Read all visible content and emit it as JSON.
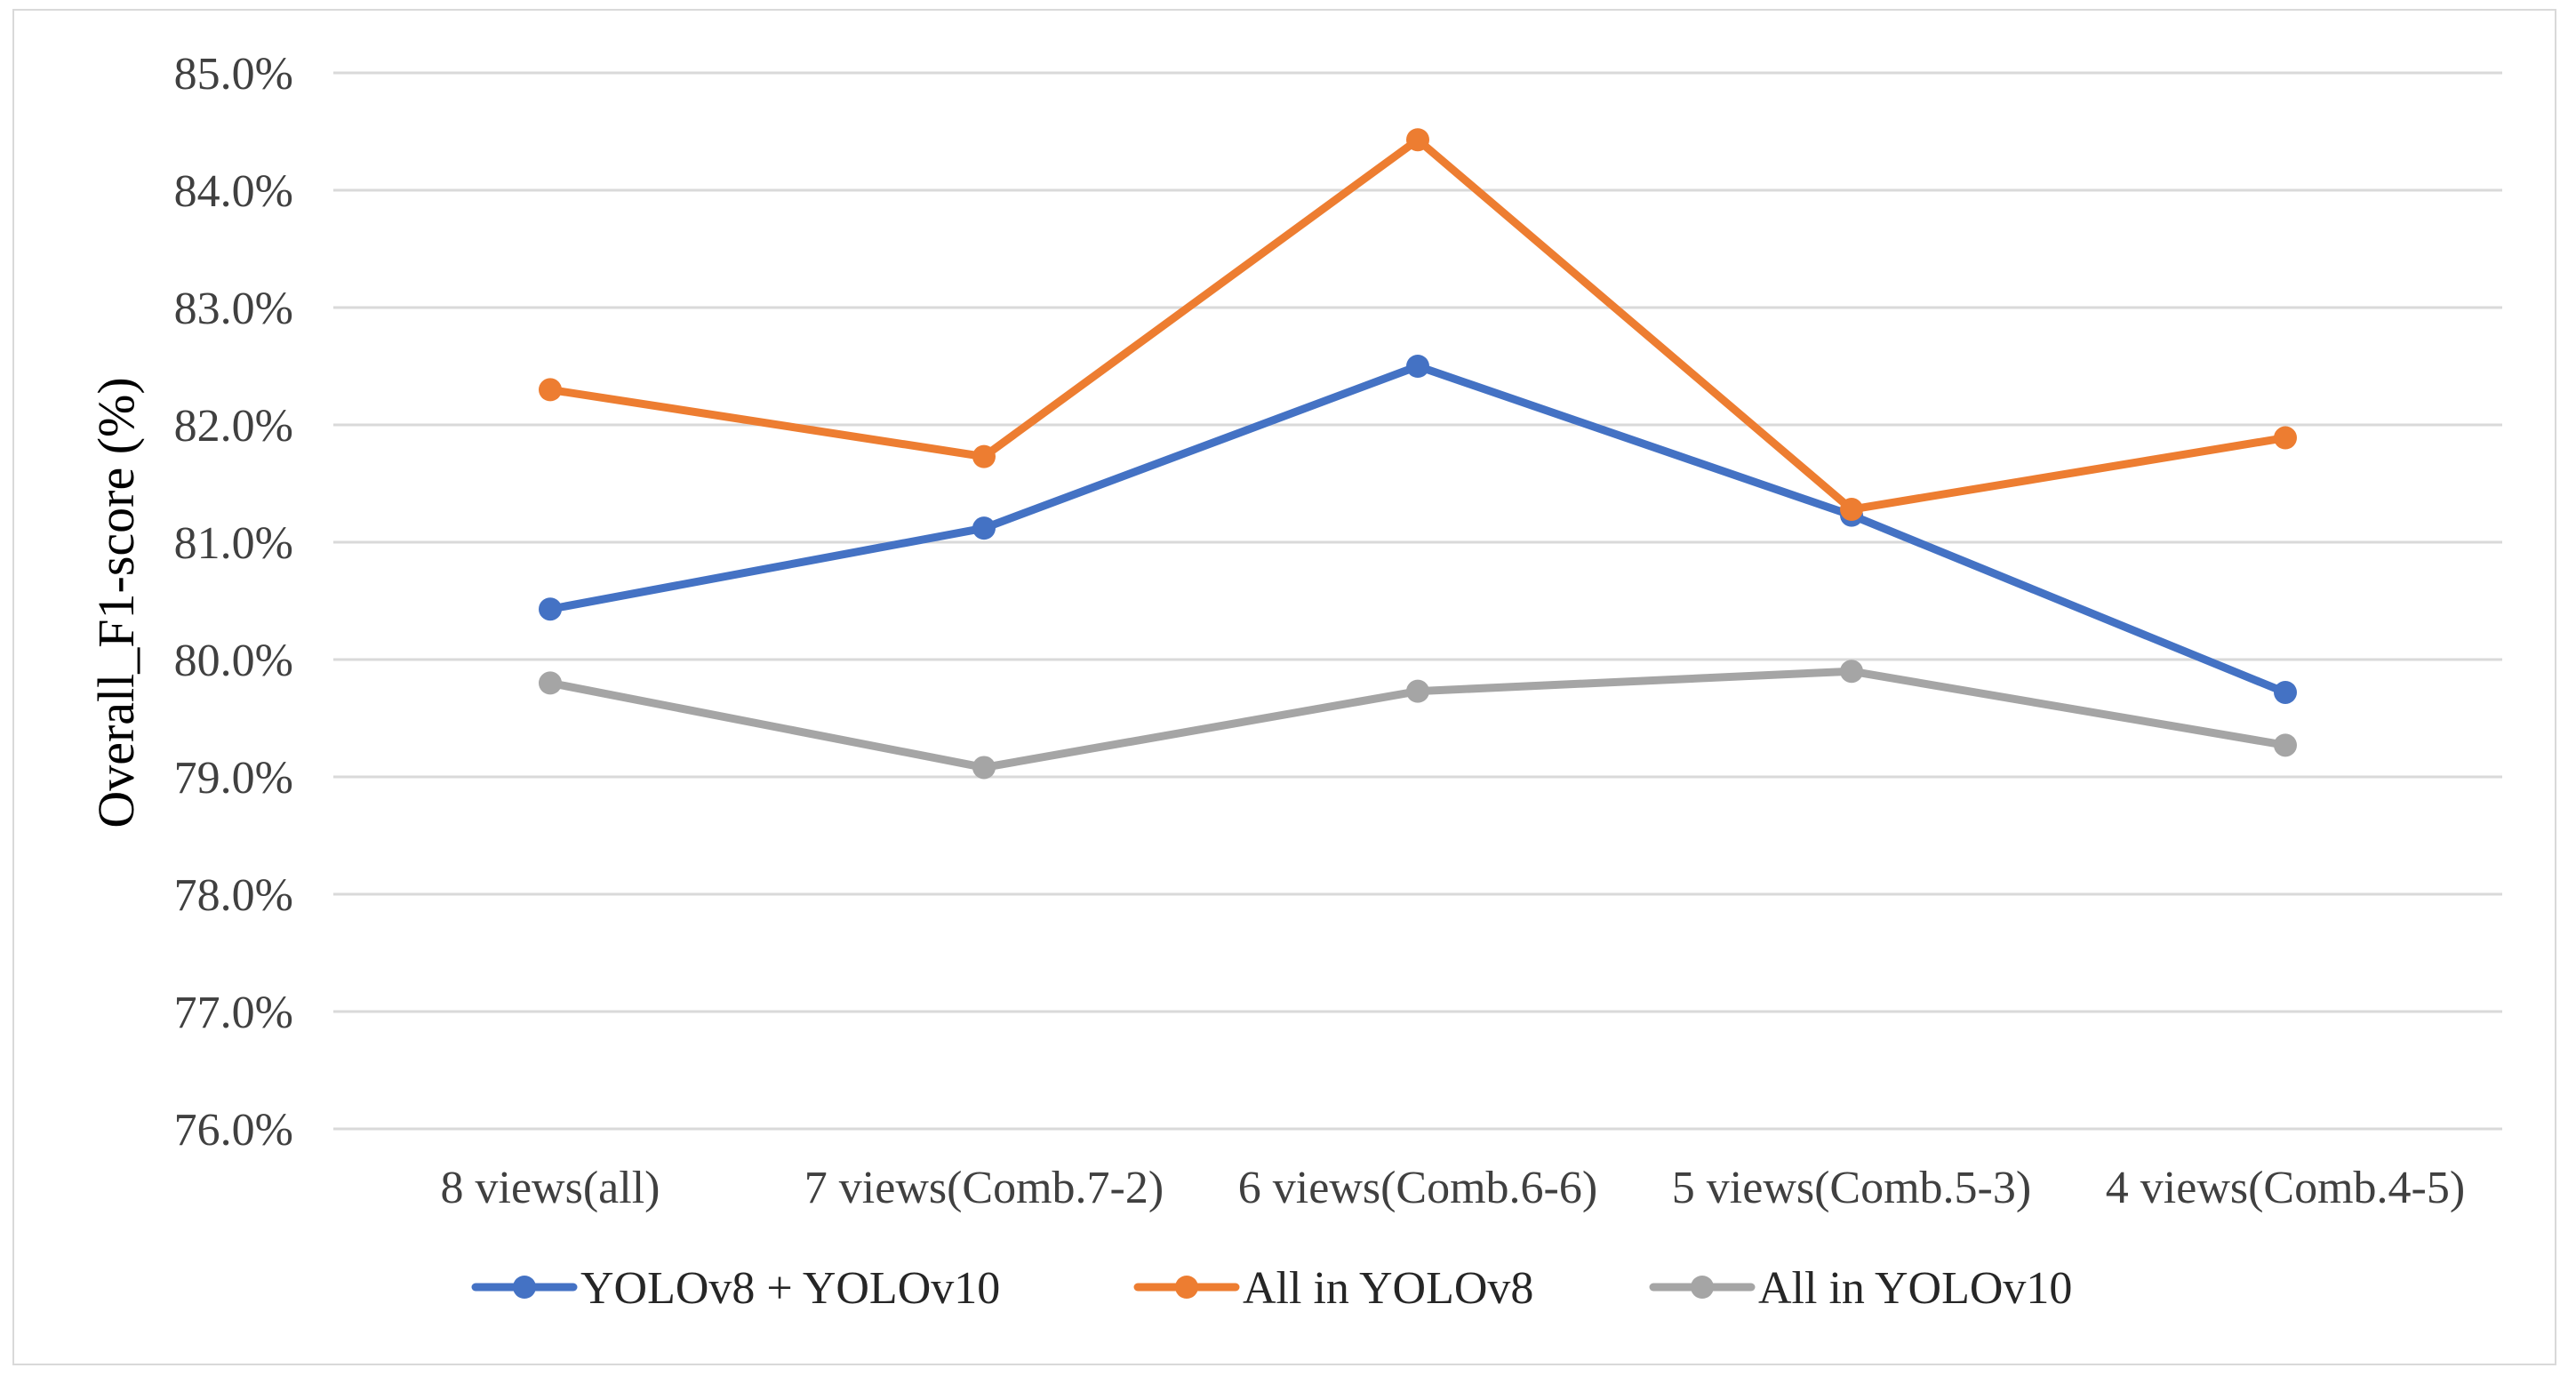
{
  "chart_data": {
    "type": "line",
    "title": "",
    "xlabel": "",
    "ylabel": "Overall_F1-score (%)",
    "ylim": [
      76.0,
      85.0
    ],
    "yticks": [
      "76.0%",
      "77.0%",
      "78.0%",
      "79.0%",
      "80.0%",
      "81.0%",
      "82.0%",
      "83.0%",
      "84.0%",
      "85.0%"
    ],
    "ytick_values": [
      76,
      77,
      78,
      79,
      80,
      81,
      82,
      83,
      84,
      85
    ],
    "grid": true,
    "legend_position": "bottom",
    "categories": [
      "8 views(all)",
      "7 views(Comb.7-2)",
      "6 views(Comb.6-6)",
      "5 views(Comb.5-3)",
      "4 views(Comb.4-5)"
    ],
    "series": [
      {
        "name": "YOLOv8 + YOLOv10",
        "color": "#4472c4",
        "values": [
          80.43,
          81.12,
          82.5,
          81.23,
          79.72
        ]
      },
      {
        "name": "All in YOLOv8",
        "color": "#ed7d31",
        "values": [
          82.3,
          81.73,
          84.43,
          81.28,
          81.89
        ]
      },
      {
        "name": "All in YOLOv10",
        "color": "#a5a5a5",
        "values": [
          79.8,
          79.08,
          79.73,
          79.9,
          79.27
        ]
      }
    ]
  }
}
